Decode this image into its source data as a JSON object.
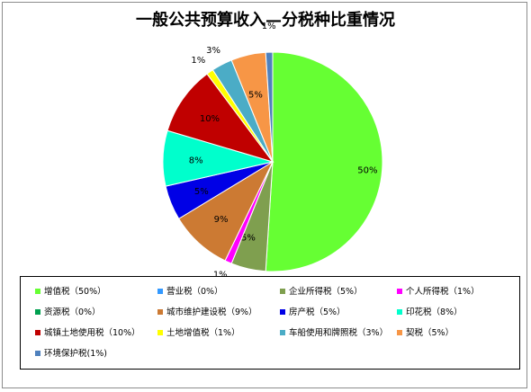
{
  "chart_data": {
    "type": "pie",
    "title": "一般公共预算收入—分税种比重情况",
    "slices": [
      {
        "name": "增值税",
        "legend": "增值税（50%）",
        "value": 50,
        "label": "50%",
        "color": "#66ff33"
      },
      {
        "name": "营业税",
        "legend": "营业税（0%）",
        "value": 0,
        "label": "0%",
        "color": "#3399ff"
      },
      {
        "name": "企业所得税",
        "legend": "企业所得税（5%）",
        "value": 5,
        "label": "5%",
        "color": "#7f9f4f"
      },
      {
        "name": "个人所得税",
        "legend": "个人所得税（1%）",
        "value": 1,
        "label": "1%",
        "color": "#ff00ff"
      },
      {
        "name": "资源税",
        "legend": "资源税（0%）",
        "value": 0,
        "label": "0%",
        "color": "#00a050"
      },
      {
        "name": "城市维护建设税",
        "legend": "城市维护建设税（9%）",
        "value": 9,
        "label": "9%",
        "color": "#cc7a33"
      },
      {
        "name": "房产税",
        "legend": "房产税（5%）",
        "value": 5,
        "label": "5%",
        "color": "#0000e6"
      },
      {
        "name": "印花税",
        "legend": "印花税（8%）",
        "value": 8,
        "label": "8%",
        "color": "#00ffcc"
      },
      {
        "name": "城镇土地使用税",
        "legend": "城镇土地使用税（10%）",
        "value": 10,
        "label": "10%",
        "color": "#c00000"
      },
      {
        "name": "土地增值税",
        "legend": "土地增值税（1%）",
        "value": 1,
        "label": "1%",
        "color": "#ffff00"
      },
      {
        "name": "车船使用和牌照税",
        "legend": "车船使用和牌照税（3%）",
        "value": 3,
        "label": "3%",
        "color": "#4bacc6"
      },
      {
        "name": "契税",
        "legend": "契税（5%）",
        "value": 5,
        "label": "5%",
        "color": "#f79646"
      },
      {
        "name": "环境保护税",
        "legend": "环境保护税(1%)",
        "value": 1,
        "label": "1%",
        "color": "#4f81bd"
      }
    ],
    "legend_placement": "bottom"
  }
}
